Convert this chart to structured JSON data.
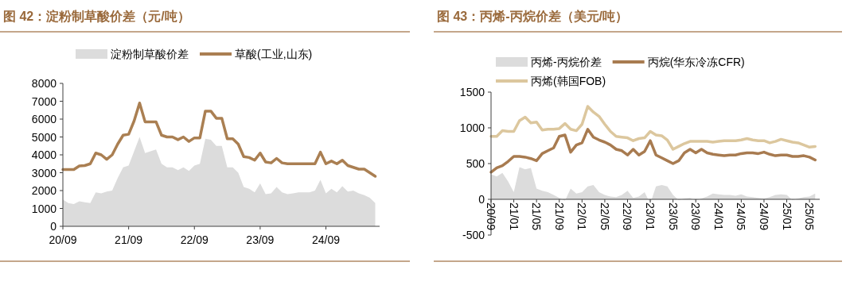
{
  "chart_data": [
    {
      "type": "line",
      "title": "图 42：淀粉制草酸价差（元/吨）",
      "legend": "top",
      "ylim": [
        0,
        8000
      ],
      "yticks": [
        0,
        1000,
        2000,
        3000,
        4000,
        5000,
        6000,
        7000,
        8000
      ],
      "categories": [
        "20/09",
        null,
        null,
        null,
        null,
        null,
        null,
        null,
        null,
        null,
        null,
        null,
        "21/09",
        null,
        null,
        null,
        null,
        null,
        null,
        null,
        null,
        null,
        null,
        null,
        "22/09",
        null,
        null,
        null,
        null,
        null,
        null,
        null,
        null,
        null,
        null,
        null,
        "23/09",
        null,
        null,
        null,
        null,
        null,
        null,
        null,
        null,
        null,
        null,
        null,
        "24/09",
        null,
        null,
        null,
        null,
        null,
        null,
        null,
        null,
        null
      ],
      "series": [
        {
          "name": "淀粉制草酸价差",
          "type": "area",
          "color": "#dcdcdc",
          "values": [
            1500,
            1300,
            1250,
            1400,
            1350,
            1300,
            1900,
            1850,
            1950,
            2000,
            2700,
            3300,
            3400,
            4200,
            5000,
            4100,
            4200,
            4300,
            3500,
            3300,
            3300,
            3150,
            3300,
            3100,
            3400,
            3500,
            4900,
            4850,
            4500,
            4500,
            3300,
            3300,
            3000,
            2200,
            2100,
            1900,
            2400,
            1800,
            1850,
            2200,
            1900,
            1800,
            1850,
            1900,
            1900,
            1900,
            2000,
            2600,
            1850,
            2100,
            1900,
            2250,
            1950,
            2000,
            1850,
            1750,
            1600,
            1300
          ]
        },
        {
          "name": "草酸(工业,山东)",
          "type": "line",
          "color": "#aa7f52",
          "values": [
            3180,
            3180,
            3180,
            3380,
            3400,
            3500,
            4100,
            4000,
            3750,
            4000,
            4600,
            5100,
            5150,
            5900,
            6900,
            5850,
            5850,
            5850,
            5100,
            5000,
            5000,
            4850,
            5000,
            4750,
            4950,
            4950,
            6450,
            6450,
            6050,
            6050,
            4900,
            4900,
            4600,
            3900,
            3850,
            3700,
            4100,
            3600,
            3550,
            3800,
            3550,
            3500,
            3500,
            3500,
            3500,
            3500,
            3500,
            4150,
            3500,
            3650,
            3500,
            3700,
            3400,
            3300,
            3200,
            3200,
            3000,
            2800
          ]
        }
      ]
    },
    {
      "type": "line",
      "title": "图 43：丙烯-丙烷价差（美元/吨）",
      "legend": "top",
      "ylim": [
        -500,
        1500
      ],
      "yticks": [
        -500,
        0,
        500,
        1000,
        1500
      ],
      "categories": [
        "20/09",
        null,
        null,
        null,
        "21/01",
        null,
        null,
        null,
        "21/05",
        null,
        null,
        null,
        "21/09",
        null,
        null,
        null,
        "22/01",
        null,
        null,
        null,
        "22/05",
        null,
        null,
        null,
        "22/09",
        null,
        null,
        null,
        "23/01",
        null,
        null,
        null,
        "23/05",
        null,
        null,
        null,
        "23/09",
        null,
        null,
        null,
        "24/01",
        null,
        null,
        null,
        "24/05",
        null,
        null,
        null,
        "24/09",
        null,
        null,
        null,
        "25/01",
        null,
        null,
        null,
        "25/05",
        null
      ],
      "series": [
        {
          "name": "丙烯-丙烷价差",
          "type": "area",
          "color": "#dcdcdc",
          "values": [
            350,
            320,
            370,
            250,
            100,
            450,
            420,
            440,
            150,
            120,
            100,
            60,
            20,
            -20,
            150,
            80,
            100,
            180,
            200,
            100,
            60,
            40,
            30,
            60,
            120,
            20,
            40,
            100,
            -60,
            180,
            200,
            180,
            60,
            -10,
            10,
            20,
            -20,
            10,
            40,
            80,
            70,
            60,
            60,
            50,
            70,
            40,
            30,
            20,
            10,
            30,
            60,
            70,
            60,
            -10,
            10,
            30,
            40,
            80
          ]
        },
        {
          "name": "丙烷(华东冷冻CFR)",
          "type": "line",
          "color": "#a87b50",
          "values": [
            380,
            440,
            470,
            530,
            600,
            600,
            590,
            570,
            540,
            640,
            680,
            720,
            880,
            900,
            660,
            760,
            790,
            980,
            870,
            830,
            800,
            760,
            700,
            680,
            620,
            700,
            620,
            670,
            820,
            620,
            580,
            540,
            500,
            540,
            650,
            700,
            650,
            700,
            650,
            630,
            620,
            610,
            620,
            620,
            640,
            650,
            650,
            640,
            660,
            630,
            610,
            620,
            620,
            600,
            600,
            610,
            590,
            550
          ]
        },
        {
          "name": "丙烯(韩国FOB)",
          "type": "line",
          "color": "#dcc79e",
          "values": [
            880,
            880,
            960,
            950,
            950,
            1100,
            1150,
            1070,
            1080,
            970,
            980,
            980,
            990,
            1060,
            980,
            960,
            1050,
            1300,
            1220,
            1160,
            1050,
            950,
            880,
            870,
            860,
            820,
            850,
            860,
            950,
            900,
            890,
            830,
            700,
            740,
            780,
            810,
            810,
            810,
            810,
            800,
            810,
            820,
            820,
            820,
            830,
            850,
            830,
            820,
            820,
            790,
            810,
            840,
            820,
            800,
            790,
            760,
            730,
            740
          ]
        }
      ]
    }
  ]
}
